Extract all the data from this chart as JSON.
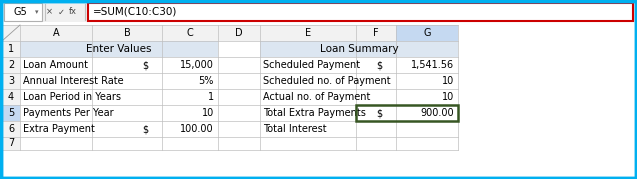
{
  "formula_bar_cell": "G5",
  "formula_bar_formula": "=SUM(C10:C30)",
  "col_headers": [
    "A",
    "B",
    "C",
    "D",
    "E",
    "F",
    "G"
  ],
  "row_numbers": [
    "1",
    "2",
    "3",
    "4",
    "5",
    "6",
    "7"
  ],
  "header_left_title": "Enter Values",
  "header_right_title": "Loan Summary",
  "left_rows": [
    {
      "label": "Loan Amount",
      "prefix": "$",
      "value": "15,000"
    },
    {
      "label": "Annual Interest Rate",
      "prefix": "",
      "value": "5%"
    },
    {
      "label": "Loan Period in Years",
      "prefix": "",
      "value": "1"
    },
    {
      "label": "Payments Per Year",
      "prefix": "",
      "value": "10"
    },
    {
      "label": "Extra Payment",
      "prefix": "$",
      "value": "100.00"
    }
  ],
  "right_rows": [
    {
      "label": "Scheduled Payment",
      "prefix": "$",
      "value": "1,541.56",
      "highlight": false
    },
    {
      "label": "Scheduled no. of Payment",
      "prefix": "",
      "value": "10",
      "highlight": false
    },
    {
      "label": "Actual no. of Payment",
      "prefix": "",
      "value": "10",
      "highlight": false
    },
    {
      "label": "Total Extra Payments",
      "prefix": "$",
      "value": "900.00",
      "highlight": true
    },
    {
      "label": "Total Interest",
      "prefix": "",
      "value": "",
      "highlight": false
    }
  ],
  "bg_color": "#ffffff",
  "header_bg": "#dce6f1",
  "col_header_bg": "#f2f2f2",
  "active_col_header_bg": "#c5d9f1",
  "grid_color": "#bfbfbf",
  "outer_border_color": "#00b0f0",
  "formula_bar_border": "#cc0000",
  "formula_bar_bg": "#ffffff",
  "formula_bar_gray": "#f0f0f0",
  "highlight_border": "#375623",
  "text_color": "#000000",
  "active_row_bg": "#dce6f1",
  "formula_text_color": "#000000"
}
